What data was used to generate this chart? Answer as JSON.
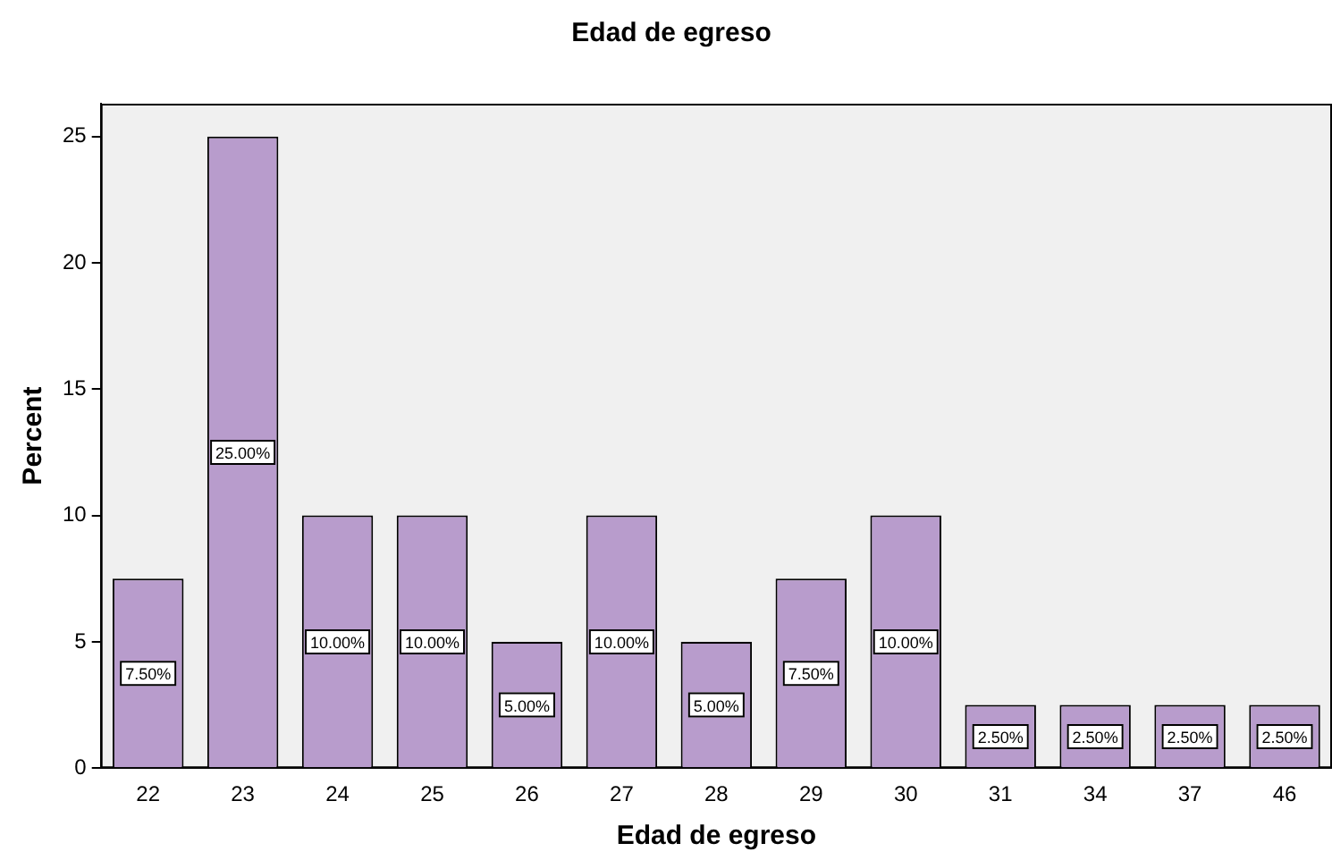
{
  "chart_data": {
    "type": "bar",
    "title": "Edad de egreso",
    "xlabel": "Edad de egreso",
    "ylabel": "Percent",
    "categories": [
      "22",
      "23",
      "24",
      "25",
      "26",
      "27",
      "28",
      "29",
      "30",
      "31",
      "34",
      "37",
      "46"
    ],
    "values": [
      7.5,
      25,
      10,
      10,
      5,
      10,
      5,
      7.5,
      10,
      2.5,
      2.5,
      2.5,
      2.5
    ],
    "value_labels": [
      "7.50%",
      "25.00%",
      "10.00%",
      "10.00%",
      "5.00%",
      "10.00%",
      "5.00%",
      "7.50%",
      "10.00%",
      "2.50%",
      "2.50%",
      "2.50%",
      "2.50%"
    ],
    "color": "#b89ccc",
    "ylim": [
      0,
      26.3
    ],
    "yticks": [
      0,
      5,
      10,
      15,
      20,
      25
    ],
    "grid": false,
    "legend": false
  }
}
